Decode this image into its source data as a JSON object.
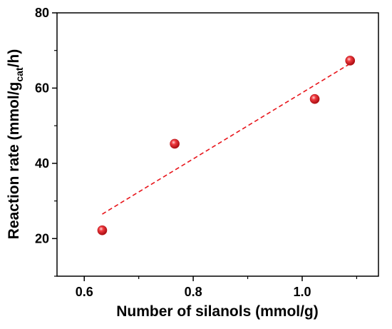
{
  "chart_data": {
    "type": "scatter",
    "xlabel": "Number of silanols (mmol/g)",
    "ylabel_prefix": "Reaction rate (mmol/g",
    "ylabel_sub": "cat",
    "ylabel_suffix": "/h)",
    "xlim": [
      0.55,
      1.14
    ],
    "ylim": [
      10,
      80
    ],
    "xticks": [
      0.6,
      0.8,
      1.0
    ],
    "xtick_labels": [
      "0.6",
      "0.8",
      "1.0"
    ],
    "yticks": [
      20,
      40,
      60,
      80
    ],
    "ytick_labels": [
      "20",
      "40",
      "60",
      "80"
    ],
    "points": [
      {
        "x": 0.633,
        "y": 22.2
      },
      {
        "x": 0.766,
        "y": 45.2
      },
      {
        "x": 1.023,
        "y": 57.1
      },
      {
        "x": 1.088,
        "y": 67.3
      }
    ],
    "fit_line": {
      "x": [
        0.633,
        1.088
      ],
      "y": [
        26.5,
        66.5
      ],
      "style": "dashed"
    },
    "colors": {
      "points": "#e8151b",
      "fit_line": "#e8151b",
      "axes": "#000000"
    },
    "grid": false
  }
}
